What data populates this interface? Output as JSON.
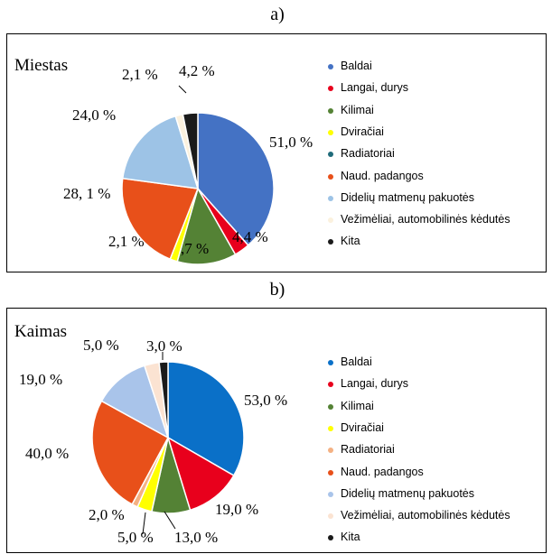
{
  "subfigure_labels": [
    "a)",
    "b)"
  ],
  "chart_data": [
    {
      "type": "pie",
      "title": "Miestas",
      "legend_position": "right",
      "slices": [
        {
          "name": "Baldai",
          "value": 51.0,
          "label": "51,0 %",
          "color": "#4472c4"
        },
        {
          "name": "Langai, durys",
          "value": 4.4,
          "label": "4,4 %",
          "color": "#e8001c"
        },
        {
          "name": "Kilimai",
          "value": 16.7,
          "label": "16,7 %",
          "color": "#548235"
        },
        {
          "name": "Dviračiai",
          "value": 2.1,
          "label": "2,1 %",
          "color": "#ffff00"
        },
        {
          "name": "Radiatoriai",
          "value": 0,
          "label": "",
          "color": "#1f6b7a"
        },
        {
          "name": "Naud. padangos",
          "value": 28.1,
          "label": "28, 1 %",
          "color": "#e8501a"
        },
        {
          "name": "Didelių matmenų pakuotės",
          "value": 24.0,
          "label": "24,0 %",
          "color": "#9dc3e6"
        },
        {
          "name": "Vežimėliai, automobilinės kėdutės",
          "value": 2.1,
          "label": "2,1 %",
          "color": "#fbf1de"
        },
        {
          "name": "Kita",
          "value": 4.2,
          "label": "4,2 %",
          "color": "#1a1a1a"
        }
      ]
    },
    {
      "type": "pie",
      "title": "Kaimas",
      "legend_position": "right",
      "slices": [
        {
          "name": "Baldai",
          "value": 53.0,
          "label": "53,0 %",
          "color": "#0a70c8"
        },
        {
          "name": "Langai, durys",
          "value": 19.0,
          "label": "19,0 %",
          "color": "#e8001c"
        },
        {
          "name": "Kilimai",
          "value": 13.0,
          "label": "13,0 %",
          "color": "#548235"
        },
        {
          "name": "Dviračiai",
          "value": 5.0,
          "label": "5,0 %",
          "color": "#ffff00"
        },
        {
          "name": "Radiatoriai",
          "value": 2.0,
          "label": "2,0 %",
          "color": "#f4b183"
        },
        {
          "name": "Naud. padangos",
          "value": 40.0,
          "label": "40,0 %",
          "color": "#e8501a"
        },
        {
          "name": "Didelių matmenų pakuotės",
          "value": 19.0,
          "label": "19,0 %",
          "color": "#a9c4ea"
        },
        {
          "name": "Vežimėliai, automobilinės kėdutės",
          "value": 5.0,
          "label": "5,0 %",
          "color": "#fbe3d2"
        },
        {
          "name": "Kita",
          "value": 3.0,
          "label": "3,0 %",
          "color": "#1a1a1a"
        }
      ]
    }
  ]
}
